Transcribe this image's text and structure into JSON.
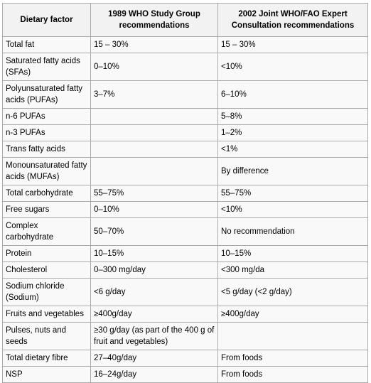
{
  "table": {
    "headers": [
      "Dietary factor",
      "1989 WHO Study Group recommendations",
      "2002 Joint WHO/FAO Expert Consultation recommendations"
    ],
    "rows": [
      [
        "Total fat",
        "15 – 30%",
        "15 – 30%"
      ],
      [
        "Saturated fatty acids (SFAs)",
        "0–10%",
        "<10%"
      ],
      [
        "Polyunsaturated fatty acids (PUFAs)",
        "3–7%",
        "6–10%"
      ],
      [
        "n-6 PUFAs",
        "",
        "5–8%"
      ],
      [
        "n-3 PUFAs",
        "",
        "1–2%"
      ],
      [
        "Trans fatty acids",
        "",
        "<1%"
      ],
      [
        "Monounsaturated fatty acids (MUFAs)",
        "",
        "By difference"
      ],
      [
        "Total carbohydrate",
        "55–75%",
        "55–75%"
      ],
      [
        "Free sugars",
        "0–10%",
        "<10%"
      ],
      [
        "Complex carbohydrate",
        "50–70%",
        "No recommendation"
      ],
      [
        "Protein",
        "10–15%",
        "10–15%"
      ],
      [
        "Cholesterol",
        "0–300 mg/day",
        "<300 mg/da"
      ],
      [
        "Sodium chloride (Sodium)",
        "<6 g/day",
        "<5 g/day (<2 g/day)"
      ],
      [
        "Fruits and vegetables",
        "≥400g/day",
        "≥400g/day"
      ],
      [
        "Pulses, nuts and seeds",
        "≥30 g/day (as part of the 400 g of fruit and vegetables)",
        ""
      ],
      [
        "Total dietary fibre",
        "27–40g/day",
        "From foods"
      ],
      [
        "NSP",
        "16–24g/day",
        "From foods"
      ]
    ]
  }
}
